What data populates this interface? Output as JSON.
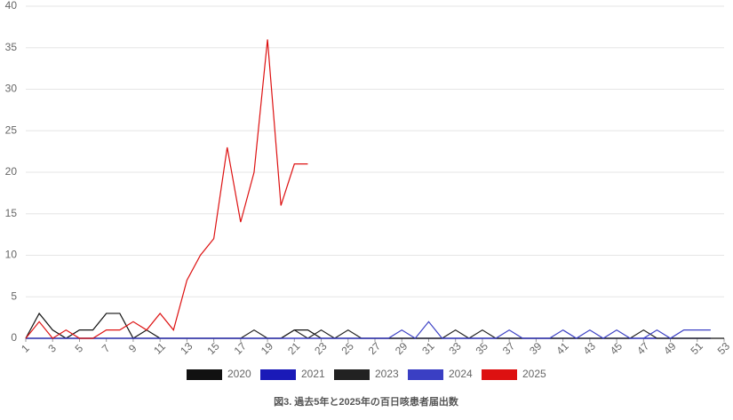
{
  "chart_data": {
    "type": "line",
    "title": "図3. 過去5年と2025年の百日咳患者届出数",
    "x": [
      1,
      2,
      3,
      4,
      5,
      6,
      7,
      8,
      9,
      10,
      11,
      12,
      13,
      14,
      15,
      16,
      17,
      18,
      19,
      20,
      21,
      22,
      23,
      24,
      25,
      26,
      27,
      28,
      29,
      30,
      31,
      32,
      33,
      34,
      35,
      36,
      37,
      38,
      39,
      40,
      41,
      42,
      43,
      44,
      45,
      46,
      47,
      48,
      49,
      50,
      51,
      52,
      53
    ],
    "xlim": [
      1,
      53
    ],
    "xticks": [
      1,
      3,
      5,
      7,
      9,
      11,
      13,
      15,
      17,
      19,
      21,
      23,
      25,
      27,
      29,
      31,
      33,
      35,
      37,
      39,
      41,
      43,
      45,
      47,
      49,
      51,
      53
    ],
    "ylim": [
      0,
      40
    ],
    "yticks": [
      0,
      5,
      10,
      15,
      20,
      25,
      30,
      35,
      40
    ],
    "grid": true,
    "series": [
      {
        "name": "2020",
        "color": "#111111",
        "values": [
          0,
          3,
          1,
          0,
          1,
          1,
          3,
          3,
          0,
          1,
          0,
          0,
          0,
          0,
          0,
          0,
          0,
          0,
          0,
          0,
          1,
          1,
          0,
          0,
          0,
          0,
          0,
          0,
          0,
          0,
          0,
          0,
          0,
          0,
          0,
          0,
          0,
          0,
          0,
          0,
          0,
          0,
          0,
          0,
          0,
          0,
          0,
          0,
          0,
          0,
          0,
          0,
          0
        ]
      },
      {
        "name": "2021",
        "color": "#1a1ab8",
        "values": [
          0,
          0,
          0,
          0,
          0,
          0,
          0,
          0,
          0,
          0,
          0,
          0,
          0,
          0,
          0,
          0,
          0,
          0,
          0,
          0,
          0,
          0,
          0,
          0,
          0,
          0,
          0,
          0,
          0,
          0,
          0,
          0,
          0,
          0,
          0,
          0,
          0,
          0,
          0,
          0,
          0,
          0,
          0,
          0,
          0,
          0,
          0,
          0,
          0,
          0,
          0,
          0,
          null
        ]
      },
      {
        "name": "2023",
        "color": "#222222",
        "values": [
          0,
          0,
          0,
          0,
          0,
          0,
          0,
          0,
          0,
          0,
          0,
          0,
          0,
          0,
          0,
          0,
          0,
          1,
          0,
          0,
          1,
          0,
          1,
          0,
          1,
          0,
          0,
          0,
          0,
          0,
          0,
          0,
          1,
          0,
          1,
          0,
          0,
          0,
          0,
          0,
          0,
          0,
          0,
          0,
          0,
          0,
          1,
          0,
          0,
          0,
          0,
          0,
          null
        ]
      },
      {
        "name": "2024",
        "color": "#3a3fc4",
        "values": [
          0,
          0,
          0,
          0,
          0,
          0,
          0,
          0,
          0,
          0,
          0,
          0,
          0,
          0,
          0,
          0,
          0,
          0,
          0,
          0,
          0,
          0,
          0,
          0,
          0,
          0,
          0,
          0,
          1,
          0,
          2,
          0,
          0,
          0,
          0,
          0,
          1,
          0,
          0,
          0,
          1,
          0,
          1,
          0,
          1,
          0,
          0,
          1,
          0,
          1,
          1,
          1,
          null
        ]
      },
      {
        "name": "2025",
        "color": "#dd1111",
        "values": [
          0,
          2,
          0,
          1,
          0,
          0,
          1,
          1,
          2,
          1,
          3,
          1,
          7,
          10,
          12,
          23,
          14,
          20,
          36,
          16,
          21,
          21,
          null,
          null,
          null,
          null,
          null,
          null,
          null,
          null,
          null,
          null,
          null,
          null,
          null,
          null,
          null,
          null,
          null,
          null,
          null,
          null,
          null,
          null,
          null,
          null,
          null,
          null,
          null,
          null,
          null,
          null,
          null
        ]
      }
    ]
  }
}
